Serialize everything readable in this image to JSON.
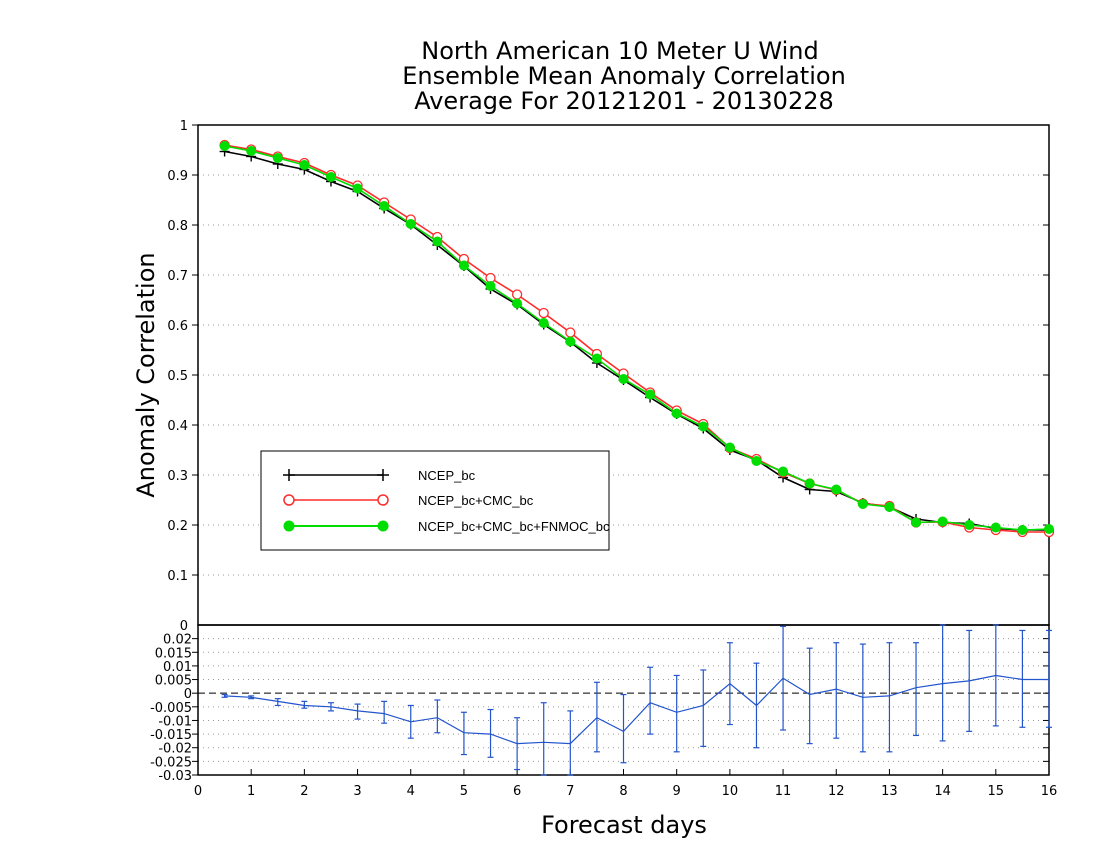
{
  "chart_data": [
    {
      "type": "line",
      "title_lines": [
        "North American 10 Meter U Wind",
        "Ensemble Mean Anomaly Correlation",
        "Average For 20121201 - 20130228"
      ],
      "ylabel": "Anomaly Correlation",
      "xlabel": "",
      "xlim": [
        0,
        16
      ],
      "ylim": [
        0,
        1
      ],
      "yticks": [
        "0.1",
        "0.2",
        "0.3",
        "0.4",
        "0.5",
        "0.6",
        "0.7",
        "0.8",
        "0.9",
        "1"
      ],
      "grid": "horizontal dotted",
      "legend_position": "left-lower",
      "x": [
        0.5,
        1,
        1.5,
        2,
        2.5,
        3,
        3.5,
        4,
        4.5,
        5,
        5.5,
        6,
        6.5,
        7,
        7.5,
        8,
        8.5,
        9,
        9.5,
        10,
        10.5,
        11,
        11.5,
        12,
        12.5,
        13,
        13.5,
        14,
        14.5,
        15,
        15.5,
        16
      ],
      "series": [
        {
          "name": "NCEP_bc",
          "color": "#000000",
          "marker": "plus",
          "values": [
            0.947,
            0.937,
            0.922,
            0.911,
            0.887,
            0.867,
            0.833,
            0.801,
            0.76,
            0.718,
            0.672,
            0.641,
            0.601,
            0.566,
            0.524,
            0.49,
            0.455,
            0.422,
            0.393,
            0.35,
            0.33,
            0.295,
            0.271,
            0.267,
            0.244,
            0.236,
            0.212,
            0.205,
            0.203,
            0.193,
            0.19,
            0.19
          ]
        },
        {
          "name": "NCEP_bc+CMC_bc",
          "color": "#ff2a2a",
          "marker": "open-circle",
          "values": [
            0.96,
            0.951,
            0.937,
            0.924,
            0.9,
            0.879,
            0.845,
            0.811,
            0.776,
            0.732,
            0.694,
            0.661,
            0.624,
            0.585,
            0.542,
            0.503,
            0.465,
            0.429,
            0.402,
            0.354,
            0.332,
            0.305,
            0.283,
            0.27,
            0.243,
            0.238,
            0.205,
            0.206,
            0.195,
            0.19,
            0.186,
            0.186
          ]
        },
        {
          "name": "NCEP_bc+CMC_bc+FNMOC_bc",
          "color": "#00dd00",
          "marker": "filled-circle",
          "values": [
            0.958,
            0.948,
            0.934,
            0.92,
            0.896,
            0.873,
            0.838,
            0.802,
            0.767,
            0.719,
            0.678,
            0.643,
            0.604,
            0.567,
            0.533,
            0.492,
            0.461,
            0.423,
            0.397,
            0.355,
            0.328,
            0.307,
            0.283,
            0.271,
            0.242,
            0.236,
            0.205,
            0.207,
            0.2,
            0.195,
            0.19,
            0.192
          ]
        }
      ]
    },
    {
      "type": "line",
      "xlabel": "Forecast days",
      "xlim": [
        0,
        16
      ],
      "ylim": [
        -0.03,
        0.025
      ],
      "xticks": [
        "0",
        "1",
        "2",
        "3",
        "4",
        "5",
        "6",
        "7",
        "8",
        "9",
        "10",
        "11",
        "12",
        "13",
        "14",
        "15",
        "16"
      ],
      "yticks": [
        "-0.03",
        "-0.025",
        "-0.02",
        "-0.015",
        "-0.01",
        "-0.005",
        "0",
        "0.005",
        "0.01",
        "0.015",
        "0.02"
      ],
      "top_tick_label": "0",
      "grid": "horizontal dotted",
      "reference_line": 0,
      "series": [
        {
          "color": "#2255cc",
          "error_bars": true,
          "x": [
            0.5,
            1,
            1.5,
            2,
            2.5,
            3,
            3.5,
            4,
            4.5,
            5,
            5.5,
            6,
            6.5,
            7,
            7.5,
            8,
            8.5,
            9,
            9.5,
            10,
            10.5,
            11,
            11.5,
            12,
            12.5,
            13,
            13.5,
            14,
            14.5,
            15,
            15.5,
            16
          ],
          "values": [
            -0.001,
            -0.0015,
            -0.003,
            -0.0045,
            -0.005,
            -0.0065,
            -0.0075,
            -0.0105,
            -0.009,
            -0.0145,
            -0.015,
            -0.0185,
            -0.018,
            -0.0185,
            -0.009,
            -0.014,
            -0.0035,
            -0.007,
            -0.0045,
            0.0035,
            -0.0045,
            0.0055,
            -0.0005,
            0.0015,
            -0.0015,
            -0.001,
            0.002,
            0.0035,
            0.0045,
            0.0065,
            0.005,
            0.005
          ],
          "lower": [
            -0.0015,
            -0.002,
            -0.0045,
            -0.0055,
            -0.0065,
            -0.0095,
            -0.011,
            -0.0165,
            -0.0145,
            -0.0225,
            -0.0235,
            -0.028,
            -0.03,
            -0.03,
            -0.0215,
            -0.0255,
            -0.015,
            -0.0215,
            -0.0195,
            -0.0115,
            -0.02,
            -0.0135,
            -0.0185,
            -0.0165,
            -0.0215,
            -0.0215,
            -0.0155,
            -0.0175,
            -0.014,
            -0.012,
            -0.0125,
            -0.0125
          ],
          "upper": [
            -0.0005,
            -0.001,
            -0.002,
            -0.003,
            -0.0035,
            -0.004,
            -0.003,
            -0.0045,
            -0.0025,
            -0.007,
            -0.006,
            -0.009,
            -0.0035,
            -0.0065,
            0.004,
            -0.0005,
            0.0095,
            0.0065,
            0.0085,
            0.0185,
            0.011,
            0.0245,
            0.0165,
            0.0185,
            0.018,
            0.0185,
            0.0185,
            0.025,
            0.023,
            0.025,
            0.023,
            0.023
          ]
        }
      ]
    }
  ]
}
